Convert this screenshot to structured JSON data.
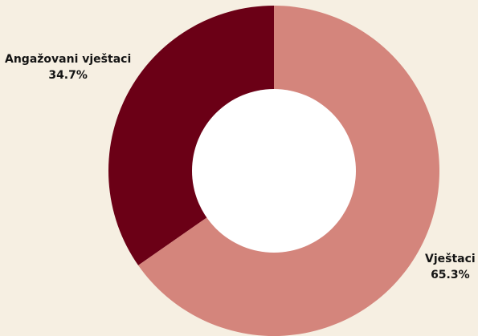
{
  "chart_data": {
    "type": "pie",
    "variant": "donut",
    "title": "",
    "categories": [
      "Angažovani vještaci",
      "Vještaci"
    ],
    "values": [
      34.7,
      65.3
    ],
    "labels": [
      "34.7%",
      "65.3%"
    ],
    "colors": [
      "#6b0016",
      "#d4857c"
    ],
    "background": "#f6efe2",
    "hole_color": "#ffffff",
    "legend": "none"
  }
}
